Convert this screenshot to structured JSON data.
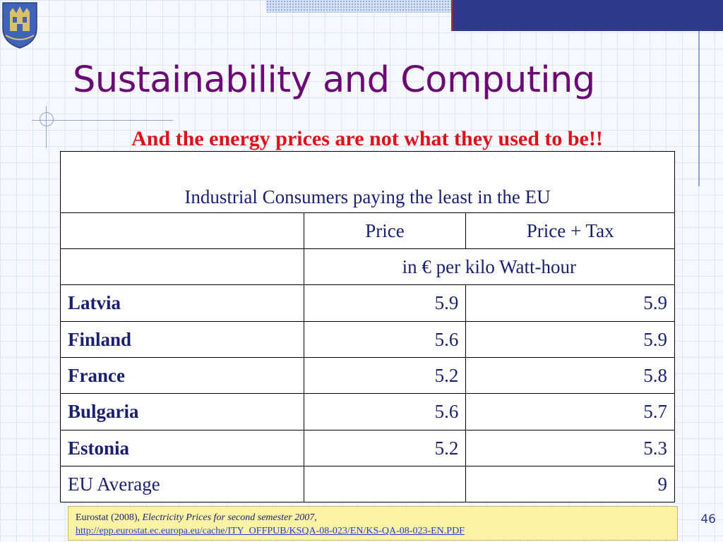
{
  "title": "Sustainability and Computing",
  "subtitle": "And the energy prices are not what they used to be!!",
  "table": {
    "caption": "Industrial Consumers paying the least in the EU",
    "col_price": "Price",
    "col_price_tax": "Price + Tax",
    "units": "in € per kilo Watt-hour",
    "rows": [
      {
        "country": "Latvia",
        "price": "5.9",
        "price_tax": "5.9"
      },
      {
        "country": "Finland",
        "price": "5.6",
        "price_tax": "5.9"
      },
      {
        "country": "France",
        "price": "5.2",
        "price_tax": "5.8"
      },
      {
        "country": "Bulgaria",
        "price": "5.6",
        "price_tax": "5.7"
      },
      {
        "country": "Estonia",
        "price": "5.2",
        "price_tax": "5.3"
      },
      {
        "country": "EU Average",
        "price": "",
        "price_tax": "9"
      }
    ]
  },
  "source": {
    "prefix": "Eurostat (2008), ",
    "title": "Electricity Prices for second semester 2007",
    "suffix": ",",
    "url": "http://epp.eurostat.ec.europa.eu/cache/ITY_OFFPUB/KSQA-08-023/EN/KS-QA-08-023-EN.PDF"
  },
  "slide_number": "46",
  "colors": {
    "title": "#6b0a74",
    "subtitle": "#e0101a",
    "table_text": "#1a1f6e",
    "header_bar": "#2e3a8c",
    "source_bg": "#fbf2a3"
  },
  "icons": {
    "logo": "crest-logo"
  }
}
